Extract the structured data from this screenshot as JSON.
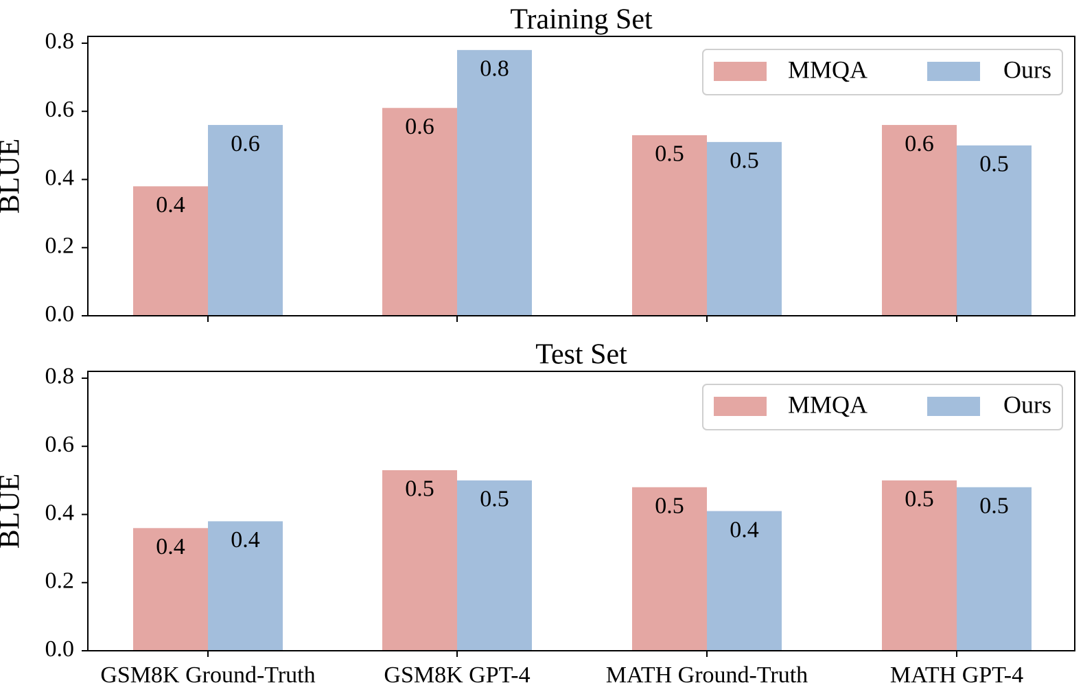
{
  "chart_data": [
    {
      "type": "bar",
      "title": "Training Set",
      "xlabel": "",
      "ylabel": "BLUE",
      "ylim": [
        0,
        0.82
      ],
      "yticks": [
        "0.0",
        "0.2",
        "0.4",
        "0.6",
        "0.8"
      ],
      "show_xticklabels": false,
      "categories": [
        "GSM8K Ground-Truth",
        "GSM8K GPT-4",
        "MATH Ground-Truth",
        "MATH GPT-4"
      ],
      "series": [
        {
          "name": "MMQA",
          "color": "#e4a7a3",
          "values": [
            0.38,
            0.61,
            0.53,
            0.56
          ],
          "labels": [
            "0.4",
            "0.6",
            "0.5",
            "0.6"
          ]
        },
        {
          "name": "Ours",
          "color": "#a3bedc",
          "values": [
            0.56,
            0.78,
            0.51,
            0.5
          ],
          "labels": [
            "0.6",
            "0.8",
            "0.5",
            "0.5"
          ]
        }
      ],
      "legend": {
        "placement": "top-right",
        "entries": [
          "MMQA",
          "Ours"
        ]
      }
    },
    {
      "type": "bar",
      "title": "Test Set",
      "xlabel": "",
      "ylabel": "BLUE",
      "ylim": [
        0,
        0.82
      ],
      "yticks": [
        "0.0",
        "0.2",
        "0.4",
        "0.6",
        "0.8"
      ],
      "show_xticklabels": true,
      "categories": [
        "GSM8K Ground-Truth",
        "GSM8K GPT-4",
        "MATH Ground-Truth",
        "MATH GPT-4"
      ],
      "series": [
        {
          "name": "MMQA",
          "color": "#e4a7a3",
          "values": [
            0.36,
            0.53,
            0.48,
            0.5
          ],
          "labels": [
            "0.4",
            "0.5",
            "0.5",
            "0.5"
          ]
        },
        {
          "name": "Ours",
          "color": "#a3bedc",
          "values": [
            0.38,
            0.5,
            0.41,
            0.48
          ],
          "labels": [
            "0.4",
            "0.5",
            "0.4",
            "0.5"
          ]
        }
      ],
      "legend": {
        "placement": "top-right",
        "entries": [
          "MMQA",
          "Ours"
        ]
      }
    }
  ]
}
